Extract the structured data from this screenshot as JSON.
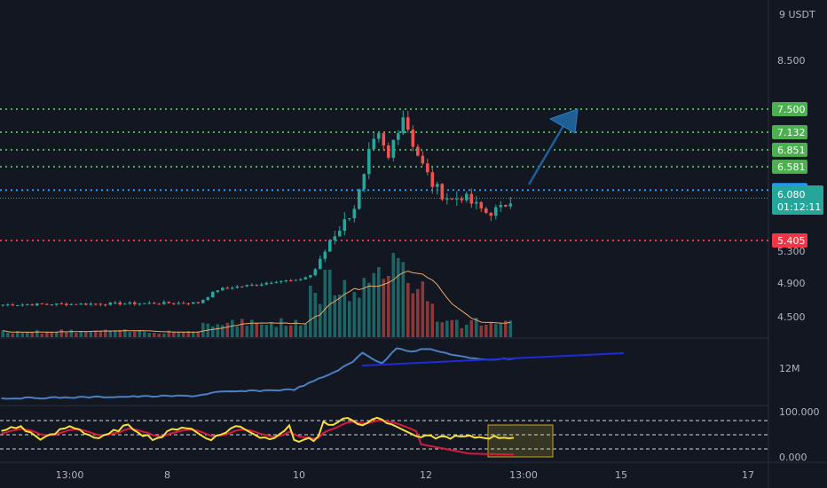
{
  "chart_data": {
    "type": "candlestick",
    "currency_label": "9 USDT",
    "price_axis": {
      "ticks": [
        {
          "value": 8.5,
          "label": "8.500"
        },
        {
          "value": 5.3,
          "label": "5.300"
        },
        {
          "value": 4.9,
          "label": "4.900"
        },
        {
          "value": 4.5,
          "label": "4.500"
        }
      ]
    },
    "time_axis": {
      "ticks": [
        {
          "label": "13:00",
          "bar": 14
        },
        {
          "label": "8",
          "bar": 34
        },
        {
          "label": "10",
          "bar": 61
        },
        {
          "label": "12",
          "bar": 87
        },
        {
          "label": "13:00",
          "bar": 107
        },
        {
          "label": "15",
          "bar": 127
        },
        {
          "label": "17",
          "bar": 153
        }
      ]
    },
    "level_lines": [
      {
        "value": 7.5,
        "label": "7.500",
        "color": "#4caf50"
      },
      {
        "value": 7.132,
        "label": "7.132",
        "color": "#4caf50"
      },
      {
        "value": 6.851,
        "label": "6.851",
        "color": "#4caf50"
      },
      {
        "value": 6.581,
        "label": "6.581",
        "color": "#4caf50"
      },
      {
        "value": 6.208,
        "label": "6.208",
        "color": "#2196f3"
      },
      {
        "value": 5.405,
        "label": "5.405",
        "color": "#f23645"
      }
    ],
    "last_price": {
      "value": 6.08,
      "label": "6.080",
      "countdown": "01:12:11",
      "color": "#26a69a"
    },
    "obv_axis_label": "12M",
    "stoch_axis": {
      "top": "100.000",
      "bottom": "0.000"
    },
    "colors": {
      "up": "#26a69a",
      "down": "#ef5350",
      "background": "#131722",
      "grid_text": "#b2b5be"
    }
  }
}
